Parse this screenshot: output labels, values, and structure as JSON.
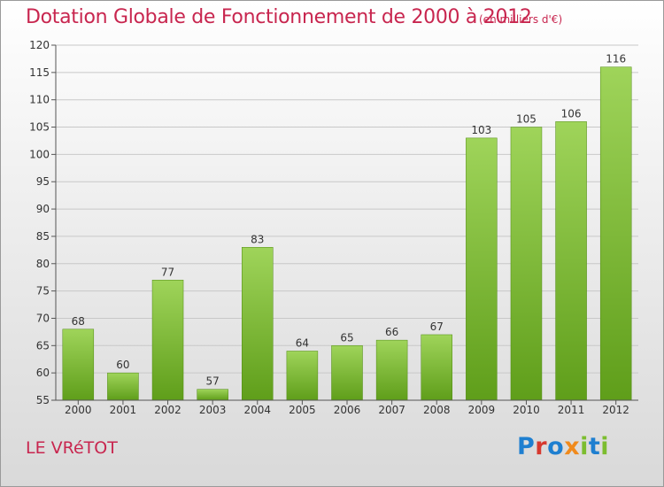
{
  "header": {
    "title": "Dotation Globale de Fonctionnement de 2000 à 2012",
    "subtitle": "(en milliers d'€)"
  },
  "footer": {
    "commune": "LE VRéTOT",
    "logo_parts": [
      "P",
      "r",
      "o",
      "x",
      "i",
      "t",
      "i"
    ]
  },
  "colors": {
    "title": "#c8264f",
    "bar_light": "#9fd45a",
    "bar_dark": "#5f9e1a",
    "grid": "#c8c8c8",
    "axis": "#555555"
  },
  "chart_data": {
    "type": "bar",
    "title": "Dotation Globale de Fonctionnement de 2000 à 2012",
    "subtitle": "(en milliers d'€)",
    "xlabel": "",
    "ylabel": "",
    "categories": [
      "2000",
      "2001",
      "2002",
      "2003",
      "2004",
      "2005",
      "2006",
      "2007",
      "2008",
      "2009",
      "2010",
      "2011",
      "2012"
    ],
    "values": [
      68,
      60,
      77,
      57,
      83,
      64,
      65,
      66,
      67,
      103,
      105,
      106,
      116
    ],
    "ylim": [
      55,
      120
    ],
    "yticks": [
      55,
      60,
      65,
      70,
      75,
      80,
      85,
      90,
      95,
      100,
      105,
      110,
      115,
      120
    ],
    "grid": true,
    "legend": "none"
  }
}
